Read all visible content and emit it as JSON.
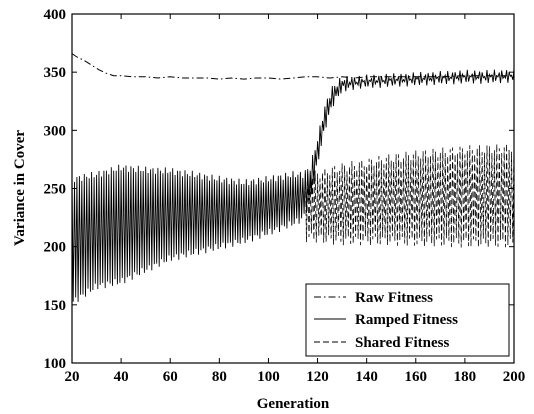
{
  "chart_data": {
    "type": "line",
    "title": "",
    "xlabel": "Generation",
    "ylabel": "Variance in Cover",
    "xlim": [
      20,
      200
    ],
    "ylim": [
      100,
      400
    ],
    "xticks": [
      20,
      40,
      60,
      80,
      100,
      120,
      140,
      160,
      180,
      200
    ],
    "yticks": [
      100,
      150,
      200,
      250,
      300,
      350,
      400
    ],
    "grid": false,
    "legend_position": "bottom-right",
    "series": [
      {
        "name": "Raw Fitness",
        "line_style": "dash-dot",
        "color": "#000000",
        "x": [
          20,
          22,
          25,
          28,
          31,
          34,
          37,
          40,
          45,
          50,
          55,
          60,
          65,
          70,
          75,
          80,
          85,
          90,
          95,
          100,
          105,
          110,
          115,
          120,
          125,
          130,
          135,
          140,
          150,
          160,
          170,
          180,
          190,
          200
        ],
        "y": [
          366,
          363,
          360,
          356,
          352,
          349,
          347,
          347,
          346,
          346,
          345,
          346,
          345,
          345,
          345,
          344,
          345,
          344,
          345,
          345,
          344,
          345,
          346,
          346,
          345,
          346,
          345,
          346,
          346,
          346,
          346,
          347,
          347,
          347
        ]
      },
      {
        "name": "Ramped Fitness",
        "line_style": "solid",
        "color": "#000000",
        "x": [
          20,
          30,
          40,
          50,
          60,
          70,
          80,
          90,
          100,
          110,
          114,
          117,
          120,
          123,
          126,
          130,
          135,
          140,
          150,
          160,
          170,
          180,
          190,
          200
        ],
        "y_low": [
          152,
          166,
          170,
          180,
          190,
          195,
          200,
          205,
          212,
          220,
          224,
          240,
          272,
          302,
          322,
          335,
          338,
          339,
          340,
          341,
          342,
          343,
          343,
          344
        ],
        "y_high": [
          258,
          262,
          268,
          266,
          265,
          262,
          258,
          255,
          258,
          262,
          262,
          268,
          292,
          320,
          336,
          344,
          344,
          345,
          346,
          347,
          348,
          349,
          349,
          350
        ]
      },
      {
        "name": "Shared Fitness",
        "line_style": "dashed",
        "color": "#000000",
        "x": [
          115,
          120,
          130,
          140,
          150,
          160,
          170,
          180,
          190,
          200
        ],
        "y_low": [
          208,
          207,
          205,
          205,
          205,
          204,
          204,
          203,
          203,
          203
        ],
        "y_high": [
          260,
          262,
          268,
          272,
          276,
          279,
          281,
          283,
          284,
          285
        ]
      }
    ]
  }
}
